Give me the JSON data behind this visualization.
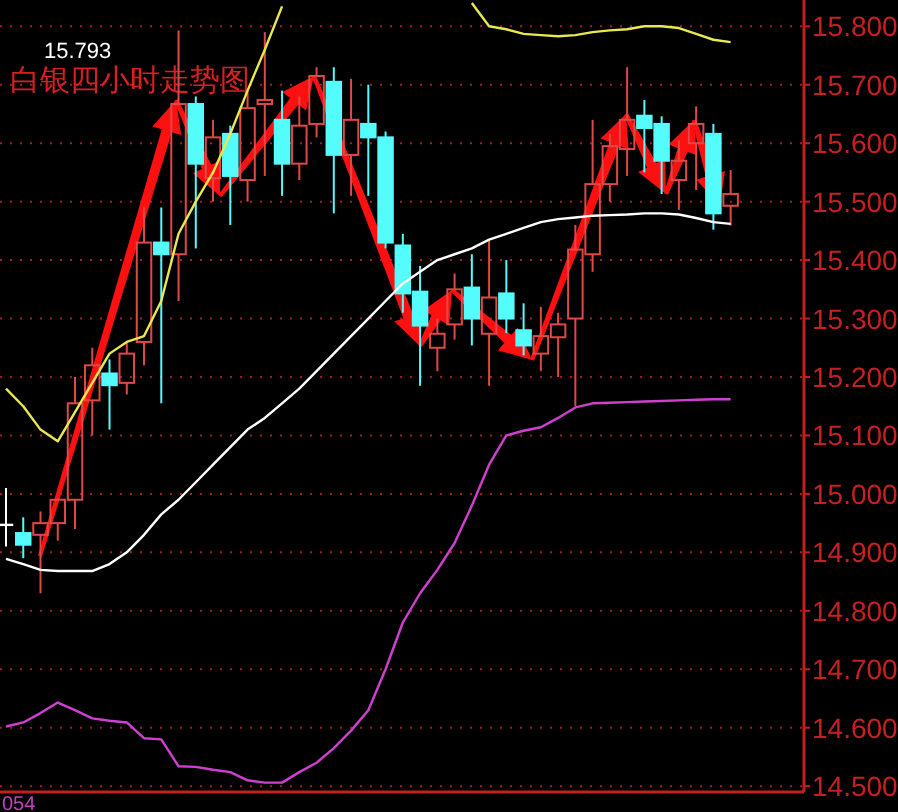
{
  "chart_data": {
    "type": "candlestick",
    "title": "白银四小时走势图",
    "categories": [
      null,
      null,
      null,
      null,
      null,
      null,
      null,
      null,
      null,
      null,
      null,
      null,
      null,
      null,
      null,
      null,
      null,
      null,
      null,
      null,
      null,
      null,
      null,
      null,
      null,
      null,
      null,
      null,
      null,
      null,
      null,
      null,
      null,
      null,
      null,
      null,
      null,
      null,
      null,
      null,
      null,
      null,
      null
    ],
    "ohlc": [
      [
        14.947,
        15.01,
        14.91,
        14.947
      ],
      [
        14.933,
        14.96,
        14.89,
        14.913
      ],
      [
        14.93,
        14.97,
        14.83,
        14.95
      ],
      [
        14.95,
        14.99,
        14.92,
        14.99
      ],
      [
        14.99,
        15.2,
        14.94,
        15.155
      ],
      [
        15.16,
        15.25,
        15.1,
        15.22
      ],
      [
        15.206,
        15.23,
        15.11,
        15.186
      ],
      [
        15.19,
        15.26,
        15.17,
        15.24
      ],
      [
        15.26,
        15.49,
        15.22,
        15.43
      ],
      [
        15.43,
        15.49,
        15.155,
        15.41
      ],
      [
        15.41,
        15.793,
        15.33,
        15.667
      ],
      [
        15.667,
        15.68,
        15.42,
        15.565
      ],
      [
        15.54,
        15.64,
        15.5,
        15.61
      ],
      [
        15.616,
        15.63,
        15.46,
        15.544
      ],
      [
        15.537,
        15.69,
        15.5,
        15.66
      ],
      [
        15.667,
        15.79,
        15.544,
        15.674
      ],
      [
        15.64,
        15.69,
        15.51,
        15.565
      ],
      [
        15.565,
        15.68,
        15.537,
        15.63
      ],
      [
        15.633,
        15.73,
        15.61,
        15.715
      ],
      [
        15.705,
        15.73,
        15.48,
        15.58
      ],
      [
        15.58,
        15.71,
        15.51,
        15.64
      ],
      [
        15.633,
        15.7,
        15.51,
        15.61
      ],
      [
        15.61,
        15.62,
        15.42,
        15.43
      ],
      [
        15.425,
        15.445,
        15.31,
        15.343
      ],
      [
        15.346,
        15.39,
        15.185,
        15.288
      ],
      [
        15.25,
        15.3,
        15.21,
        15.274
      ],
      [
        15.29,
        15.377,
        15.264,
        15.35
      ],
      [
        15.353,
        15.41,
        15.254,
        15.3
      ],
      [
        15.274,
        15.435,
        15.185,
        15.336
      ],
      [
        15.343,
        15.4,
        15.275,
        15.3
      ],
      [
        15.28,
        15.326,
        15.237,
        15.254
      ],
      [
        15.24,
        15.32,
        15.21,
        15.27
      ],
      [
        15.268,
        15.31,
        15.2,
        15.29
      ],
      [
        15.3,
        15.46,
        15.15,
        15.418
      ],
      [
        15.41,
        15.64,
        15.38,
        15.53
      ],
      [
        15.53,
        15.616,
        15.5,
        15.595
      ],
      [
        15.59,
        15.73,
        15.544,
        15.64
      ],
      [
        15.647,
        15.674,
        15.55,
        15.626
      ],
      [
        15.633,
        15.646,
        15.513,
        15.57
      ],
      [
        15.537,
        15.605,
        15.486,
        15.57
      ],
      [
        15.6,
        15.663,
        15.52,
        15.633
      ],
      [
        15.616,
        15.633,
        15.452,
        15.48
      ],
      [
        15.493,
        15.554,
        15.459,
        15.513
      ]
    ],
    "colors": [
      "#ffffff",
      "#54fcfc",
      "#e04848",
      "#e04848",
      "#e04848",
      "#e04848",
      "#54fcfc",
      "#e04848",
      "#e04848",
      "#54fcfc",
      "#e04848",
      "#54fcfc",
      "#e04848",
      "#54fcfc",
      "#e04848",
      "#e04848",
      "#54fcfc",
      "#e04848",
      "#e04848",
      "#54fcfc",
      "#e04848",
      "#54fcfc",
      "#54fcfc",
      "#54fcfc",
      "#54fcfc",
      "#e04848",
      "#e04848",
      "#54fcfc",
      "#e04848",
      "#54fcfc",
      "#54fcfc",
      "#e04848",
      "#e04848",
      "#e04848",
      "#e04848",
      "#e04848",
      "#e04848",
      "#54fcfc",
      "#54fcfc",
      "#e04848",
      "#e04848",
      "#54fcfc",
      "#e04848"
    ],
    "series": [
      {
        "type": "line",
        "color": "#e8e850",
        "values": [
          15.18,
          15.15,
          15.11,
          15.09,
          15.14,
          15.19,
          15.24,
          15.26,
          15.27,
          15.33,
          15.445,
          15.5,
          15.55,
          15.616,
          15.69,
          15.76,
          15.834,
          null,
          null,
          null,
          null,
          null,
          null,
          null,
          null,
          null,
          null,
          15.84,
          15.8,
          15.795,
          15.787,
          15.785,
          15.783,
          15.785,
          15.79,
          15.793,
          15.795,
          15.8,
          15.8,
          15.797,
          15.787,
          15.777,
          15.773
        ]
      },
      {
        "type": "line",
        "color": "#ffffff",
        "values": [
          14.889,
          14.88,
          14.87,
          14.868,
          14.868,
          14.868,
          14.88,
          14.9,
          14.93,
          14.965,
          14.99,
          15.02,
          15.05,
          15.08,
          15.11,
          15.13,
          15.155,
          15.18,
          15.21,
          15.24,
          15.27,
          15.3,
          15.33,
          15.36,
          15.38,
          15.4,
          15.41,
          15.42,
          15.435,
          15.445,
          15.455,
          15.465,
          15.47,
          15.473,
          15.476,
          15.477,
          15.478,
          15.48,
          15.48,
          15.478,
          15.472,
          15.465,
          15.462
        ]
      },
      {
        "type": "line",
        "color": "#d040d0",
        "values": [
          14.602,
          14.609,
          14.625,
          14.643,
          14.63,
          14.616,
          14.612,
          14.609,
          14.582,
          14.58,
          14.534,
          14.533,
          14.528,
          14.524,
          14.51,
          14.506,
          14.506,
          14.524,
          14.54,
          14.565,
          14.595,
          14.63,
          14.7,
          14.78,
          14.83,
          14.87,
          14.916,
          14.98,
          15.05,
          15.1,
          15.108,
          15.114,
          15.13,
          15.148,
          15.155,
          15.156,
          15.157,
          15.158,
          15.159,
          15.16,
          15.161,
          15.162,
          15.162
        ]
      }
    ],
    "ylim": [
      14.49,
      15.845
    ],
    "yticks": [
      {
        "value": 14.5,
        "label": "14.500"
      },
      {
        "value": 14.6,
        "label": "14.600"
      },
      {
        "value": 14.7,
        "label": "14.700"
      },
      {
        "value": 14.8,
        "label": "14.800"
      },
      {
        "value": 14.9,
        "label": "14.900"
      },
      {
        "value": 15.0,
        "label": "15.000"
      },
      {
        "value": 15.1,
        "label": "15.100"
      },
      {
        "value": 15.2,
        "label": "15.200"
      },
      {
        "value": 15.3,
        "label": "15.300"
      },
      {
        "value": 15.4,
        "label": "15.400"
      },
      {
        "value": 15.5,
        "label": "15.500"
      },
      {
        "value": 15.6,
        "label": "15.600"
      },
      {
        "value": 15.7,
        "label": "15.700"
      },
      {
        "value": 15.8,
        "label": "15.800"
      }
    ],
    "grid": "y",
    "tick_labels": "y",
    "annotations": [
      "15.793",
      "054"
    ]
  }
}
